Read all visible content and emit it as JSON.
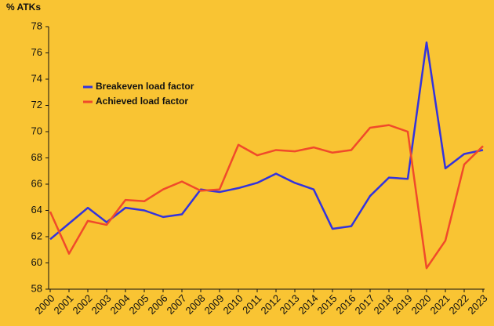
{
  "chart_data": {
    "type": "line",
    "y_label": "% ATKs",
    "categories": [
      "2000",
      "2001",
      "2002",
      "2003",
      "2004",
      "2005",
      "2006",
      "2007",
      "2008",
      "2009",
      "2010",
      "2011",
      "2012",
      "2013",
      "2014",
      "2015",
      "2016",
      "2017",
      "2018",
      "2019",
      "2020",
      "2021",
      "2022",
      "2023"
    ],
    "series": [
      {
        "name": "Breakeven load factor",
        "color": "#3333dd",
        "values": [
          61.8,
          63.0,
          64.2,
          63.1,
          64.2,
          64.0,
          63.5,
          63.7,
          65.6,
          65.4,
          65.7,
          66.1,
          66.8,
          66.1,
          65.6,
          62.6,
          62.8,
          65.1,
          66.5,
          66.4,
          76.8,
          67.2,
          68.3,
          68.6
        ]
      },
      {
        "name": "Achieved load factor",
        "color": "#f04a2a",
        "values": [
          63.9,
          60.7,
          63.2,
          62.9,
          64.8,
          64.7,
          65.6,
          66.2,
          65.5,
          65.6,
          69.0,
          68.2,
          68.6,
          68.5,
          68.8,
          68.4,
          68.6,
          70.3,
          70.5,
          70.0,
          59.6,
          61.7,
          67.5,
          68.9
        ]
      }
    ],
    "ylim": [
      58,
      78
    ],
    "yticks": [
      58,
      60,
      62,
      64,
      66,
      68,
      70,
      72,
      74,
      76,
      78
    ],
    "grid": false,
    "legend": "upper left"
  }
}
